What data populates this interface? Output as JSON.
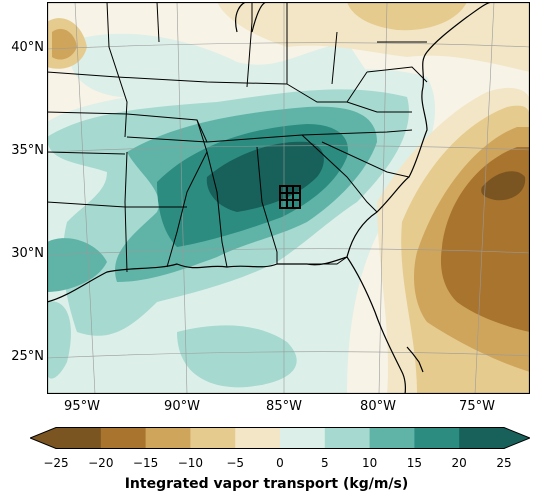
{
  "map": {
    "lat_labels": [
      "40°N",
      "35°N",
      "30°N",
      "25°N"
    ],
    "lon_labels": [
      "95°W",
      "90°W",
      "85°W",
      "80°W",
      "75°W"
    ]
  },
  "colorbar": {
    "title": "Integrated vapor transport (kg/m/s)",
    "ticks": [
      "−25",
      "−20",
      "−15",
      "−10",
      "−5",
      "0",
      "5",
      "10",
      "15",
      "20",
      "25"
    ],
    "colors": [
      "#7a5522",
      "#a8742e",
      "#cfa55c",
      "#e6cb8f",
      "#f3e6c6",
      "#f7f3e7",
      "#dcefe9",
      "#a6d9cf",
      "#5fb4a7",
      "#2c8c80",
      "#17615a"
    ]
  }
}
